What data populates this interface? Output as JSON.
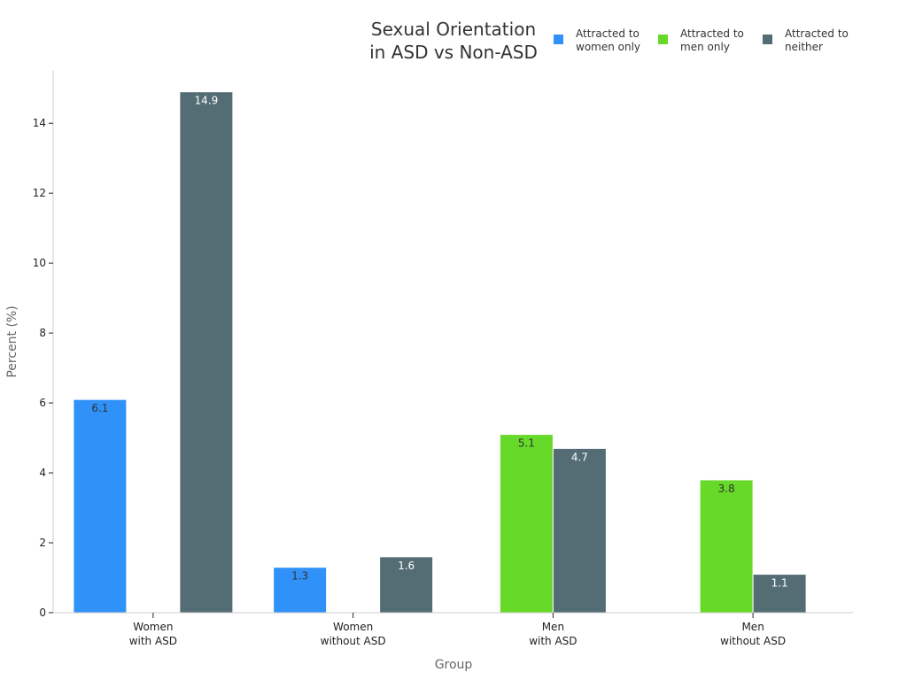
{
  "chart_data": {
    "type": "bar",
    "title": [
      "Sexual Orientation",
      "in ASD vs Non-ASD"
    ],
    "xlabel": "Group",
    "ylabel": "Percent (%)",
    "ylim": [
      0,
      15.5
    ],
    "yticks": [
      0,
      2,
      4,
      6,
      8,
      10,
      12,
      14
    ],
    "ytick_labels": [
      "0",
      "2",
      "4",
      "6",
      "8",
      "10",
      "12",
      "14"
    ],
    "categories": [
      [
        "Women",
        "with ASD"
      ],
      [
        "Women",
        "without ASD"
      ],
      [
        "Men",
        "with ASD"
      ],
      [
        "Men",
        "without ASD"
      ]
    ],
    "legend_position": "top-right",
    "series": [
      {
        "name": [
          "Attracted to",
          "women only"
        ],
        "color": "#3092f8",
        "label_color": "#333333",
        "values": [
          6.1,
          1.3,
          null,
          null
        ],
        "value_labels": [
          "6.1",
          "1.3",
          "",
          ""
        ]
      },
      {
        "name": [
          "Attracted to",
          "men only"
        ],
        "color": "#66d929",
        "label_color": "#333333",
        "values": [
          null,
          null,
          5.1,
          3.8
        ],
        "value_labels": [
          "",
          "",
          "5.1",
          "3.8"
        ]
      },
      {
        "name": [
          "Attracted to",
          "neither"
        ],
        "color": "#546d75",
        "label_color": "#ffffff",
        "values": [
          14.9,
          1.6,
          4.7,
          1.1
        ],
        "value_labels": [
          "14.9",
          "1.6",
          "4.7",
          "1.1"
        ]
      }
    ]
  }
}
